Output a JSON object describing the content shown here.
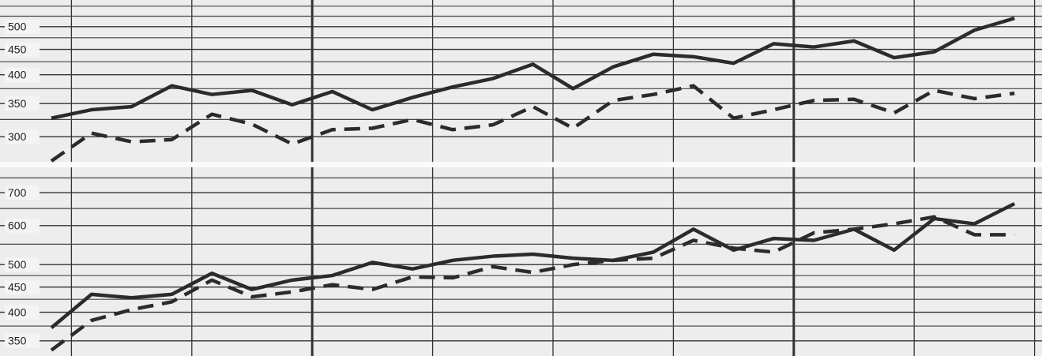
{
  "chart_data": [
    {
      "type": "line",
      "log_scale": true,
      "grid": true,
      "categories": [
        null,
        null,
        null,
        null,
        null,
        null,
        null,
        null,
        null,
        null,
        null,
        null,
        null,
        null,
        null,
        null,
        null,
        null,
        null,
        null,
        null,
        null,
        null,
        null,
        null
      ],
      "series": [
        {
          "color": "#2b2b2b",
          "dash": false,
          "values": [
            327,
            340,
            345,
            380,
            365,
            372,
            348,
            370,
            340,
            360,
            378,
            393,
            420,
            375,
            415,
            440,
            435,
            422,
            462,
            455,
            468,
            433,
            445,
            492,
            520
          ]
        },
        {
          "color": "#2b2b2b",
          "dash": true,
          "values": [
            268,
            305,
            293,
            296,
            333,
            318,
            290,
            310,
            312,
            325,
            310,
            317,
            345,
            312,
            355,
            365,
            380,
            327,
            340,
            355,
            357,
            335,
            372,
            358,
            367
          ]
        }
      ],
      "ylim": [
        267,
        566
      ],
      "yticks": [
        300,
        350,
        400,
        450,
        500
      ],
      "minor_yticks": [
        325,
        375,
        425,
        475,
        525,
        550
      ]
    },
    {
      "type": "line",
      "log_scale": true,
      "grid": true,
      "categories": [
        null,
        null,
        null,
        null,
        null,
        null,
        null,
        null,
        null,
        null,
        null,
        null,
        null,
        null,
        null,
        null,
        null,
        null,
        null,
        null,
        null,
        null,
        null,
        null,
        null
      ],
      "series": [
        {
          "color": "#2b2b2b",
          "dash": false,
          "values": [
            372,
            435,
            428,
            435,
            480,
            445,
            465,
            475,
            505,
            490,
            510,
            520,
            525,
            515,
            510,
            530,
            590,
            535,
            565,
            560,
            590,
            535,
            620,
            605,
            665
          ]
        },
        {
          "color": "#2b2b2b",
          "dash": true,
          "values": [
            335,
            385,
            405,
            420,
            465,
            430,
            440,
            455,
            445,
            472,
            470,
            495,
            482,
            500,
            510,
            515,
            560,
            540,
            530,
            580,
            590,
            605,
            625,
            575,
            575
          ]
        }
      ],
      "ylim": [
        326,
        788
      ],
      "yticks": [
        350,
        400,
        450,
        500,
        600,
        700
      ],
      "minor_yticks": [
        375,
        425,
        475,
        550,
        650,
        750
      ]
    }
  ]
}
